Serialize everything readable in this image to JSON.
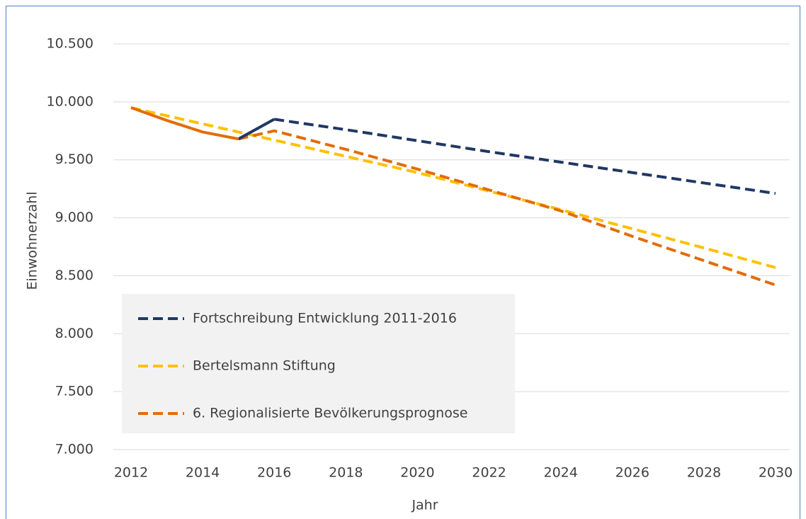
{
  "chart_data": {
    "type": "line",
    "x_label": "Jahr",
    "y_label": "Einwohnerzahl",
    "x": [
      2012,
      2013,
      2014,
      2015,
      2016,
      2018,
      2020,
      2022,
      2024,
      2026,
      2028,
      2030
    ],
    "series": [
      {
        "name": "Fortschreibung Entwicklung 2011-2016",
        "color": "#1f3864",
        "dashed": true,
        "values": [
          null,
          null,
          null,
          null,
          9850,
          9760,
          9665,
          9570,
          9480,
          9390,
          9300,
          9210
        ]
      },
      {
        "name": "Bertelsmann Stiftung",
        "color": "#ffc000",
        "dashed": true,
        "values": [
          9950,
          9880,
          9810,
          9740,
          9670,
          9530,
          9390,
          9230,
          9070,
          8905,
          8740,
          8570
        ]
      },
      {
        "name": "6. Regionalisierte Bevölkerungsprognose",
        "color": "#e36c0a",
        "dashed": true,
        "values": [
          null,
          null,
          null,
          9680,
          9750,
          9590,
          9420,
          9240,
          9060,
          8840,
          8630,
          8420
        ]
      },
      {
        "color": "#1f3864",
        "dashed": false,
        "values": [
          null,
          null,
          null,
          9680,
          9850,
          null,
          null,
          null,
          null,
          null,
          null,
          null
        ]
      },
      {
        "color": "#e36c0a",
        "dashed": false,
        "values": [
          9950,
          9840,
          9740,
          9680,
          null,
          null,
          null,
          null,
          null,
          null,
          null,
          null
        ]
      }
    ],
    "xlim": [
      2012,
      2030
    ],
    "xticks": [
      2012,
      2014,
      2016,
      2018,
      2020,
      2022,
      2024,
      2026,
      2028,
      2030
    ],
    "ylim": [
      7000,
      10500
    ],
    "yticks": [
      {
        "value": 7000,
        "label": "7.000"
      },
      {
        "value": 7500,
        "label": "7.500"
      },
      {
        "value": 8000,
        "label": "8.000"
      },
      {
        "value": 8500,
        "label": "8.500"
      },
      {
        "value": 9000,
        "label": "9.000"
      },
      {
        "value": 9500,
        "label": "9.500"
      },
      {
        "value": 10000,
        "label": "10.000"
      },
      {
        "value": 10500,
        "label": "10.500"
      }
    ],
    "grid": true,
    "legend": "bottom-left"
  }
}
